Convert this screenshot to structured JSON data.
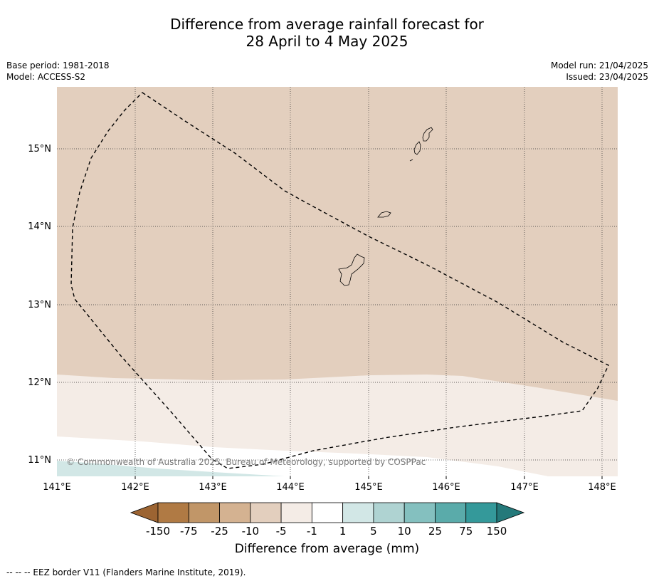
{
  "header": {
    "title_line1": "Difference from average rainfall forecast for",
    "title_line2": "28 April to 4 May 2025",
    "base_period": "Base period: 1981-2018",
    "model": "Model: ACCESS-S2",
    "model_run": "Model run: 21/04/2025",
    "issued": "Issued: 23/04/2025"
  },
  "map": {
    "lon_ticks": [
      "141°E",
      "142°E",
      "143°E",
      "144°E",
      "145°E",
      "146°E",
      "147°E",
      "148°E"
    ],
    "lat_ticks": [
      "15°N",
      "14°N",
      "13°N",
      "12°N",
      "11°N"
    ],
    "copyright": "© Commonwealth of Australia 2025, Bureau of Meteorology, supported by COSPPac",
    "colors": {
      "band_minus10_minus5": "#e3cfbe",
      "band_minus5_minus1": "#f4ece6",
      "band_minus1_1": "#ffffff",
      "band_1_5": "#d2e7e6"
    }
  },
  "colorbar": {
    "labels": [
      "-150",
      "-75",
      "-25",
      "-10",
      "-5",
      "-1",
      "1",
      "5",
      "10",
      "25",
      "75",
      "150"
    ],
    "colors": [
      "#9c6432",
      "#b07a44",
      "#c19668",
      "#d4b291",
      "#e3cfbe",
      "#f4ece6",
      "#ffffff",
      "#d2e7e6",
      "#afd3d2",
      "#84c0bf",
      "#5aabaa",
      "#34999a",
      "#24797a"
    ],
    "title": "Difference from average (mm)"
  },
  "footnote": "--  --  -- EEZ border V11 (Flanders Marine Institute, 2019)."
}
